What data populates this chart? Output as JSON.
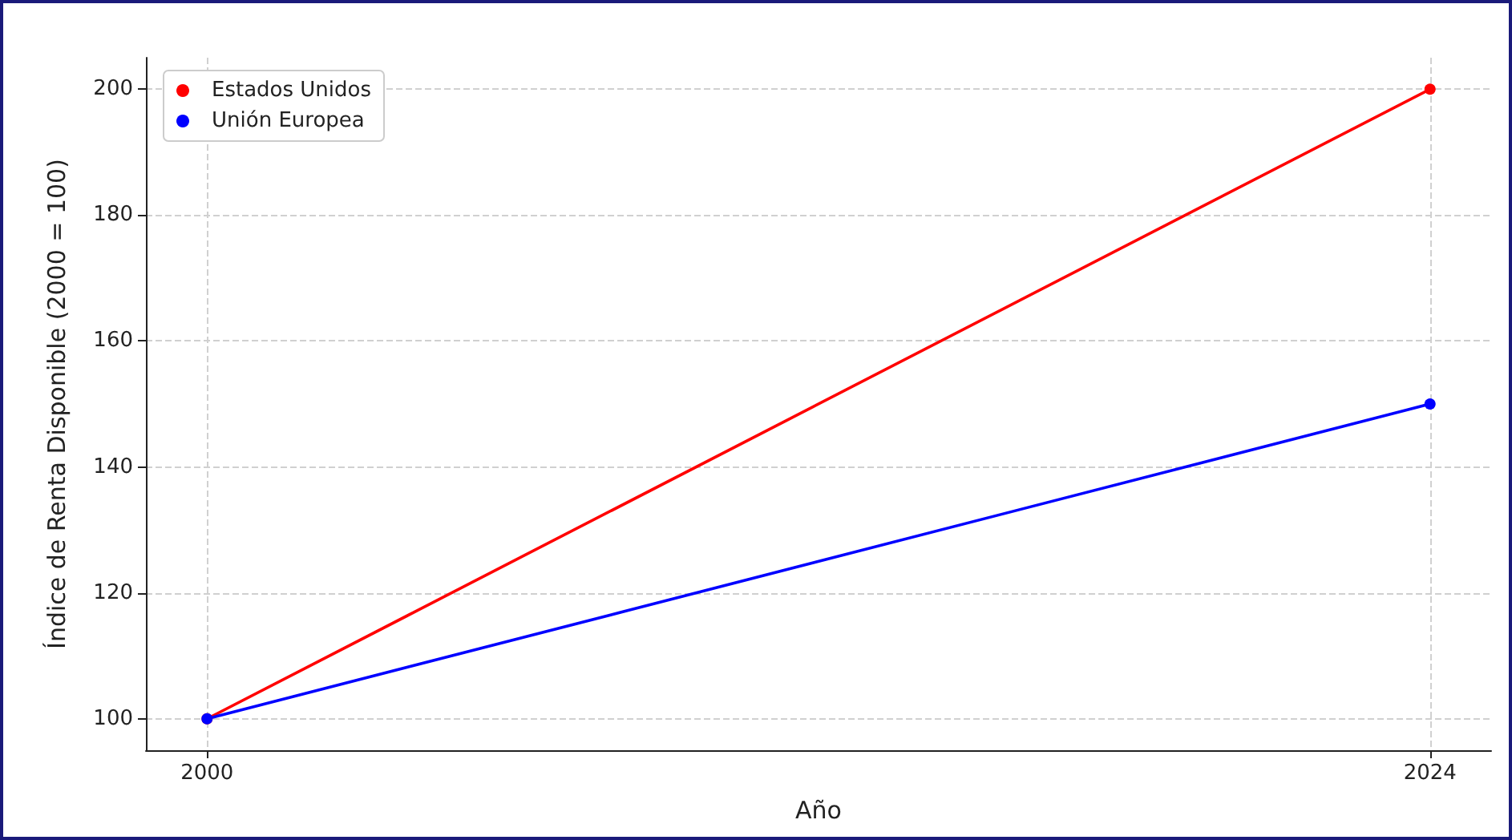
{
  "chart_data": {
    "type": "line",
    "xlabel": "Año",
    "ylabel": "Índice de Renta Disponible (2000 = 100)",
    "x": [
      2000,
      2024
    ],
    "series": [
      {
        "name": "Estados Unidos",
        "color": "#ff0000",
        "values": [
          100,
          200
        ]
      },
      {
        "name": "Unión Europea",
        "color": "#0000ff",
        "values": [
          100,
          150
        ]
      }
    ],
    "xlim": [
      1998.8,
      2025.2
    ],
    "xticks": [
      2000,
      2024
    ],
    "ylim": [
      95,
      205
    ],
    "yticks": [
      100,
      120,
      140,
      160,
      180,
      200
    ],
    "grid": true,
    "legend": "top left",
    "marker": "circle",
    "line_style": "solid"
  }
}
